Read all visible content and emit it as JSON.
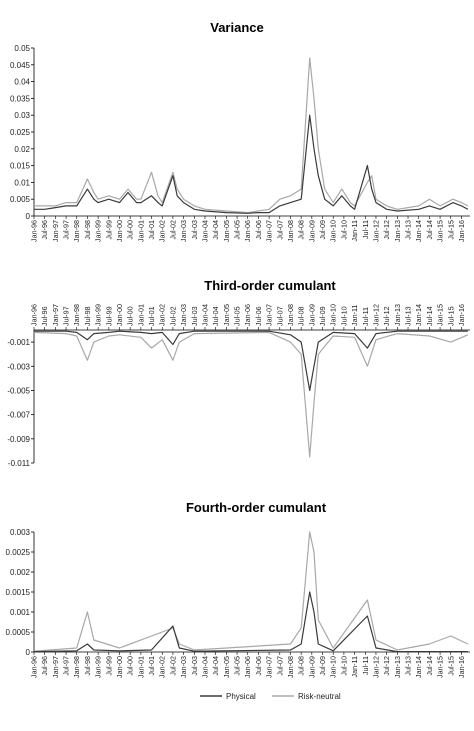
{
  "colors": {
    "physical": "#3a3a3a",
    "risk_neutral": "#a8a8a8",
    "axis": "#000000"
  },
  "x_tick_labels": [
    "Jan-96",
    "Jul-96",
    "Jan-97",
    "Jul-97",
    "Jan-98",
    "Jul-98",
    "Jan-99",
    "Jul-99",
    "Jan-00",
    "Jul-00",
    "Jan-01",
    "Jul-01",
    "Jan-02",
    "Jul-02",
    "Jan-03",
    "Jul-03",
    "Jan-04",
    "Jul-04",
    "Jan-05",
    "Jul-05",
    "Jan-06",
    "Jul-06",
    "Jan-07",
    "Jul-07",
    "Jan-08",
    "Jul-08",
    "Jan-09",
    "Jul-09",
    "Jan-10",
    "Jul-10",
    "Jan-11",
    "Jul-11",
    "Jan-12",
    "Jul-12",
    "Jan-13",
    "Jul-13",
    "Jan-14",
    "Jul-14",
    "Jan-15",
    "Jul-15",
    "Jan-16"
  ],
  "legend": {
    "physical": "Physical",
    "risk_neutral": "Risk-neutral"
  },
  "chart_data": [
    {
      "type": "line",
      "title": "Variance",
      "ylim": [
        0,
        0.05
      ],
      "y_ticks": [
        0,
        0.005,
        0.01,
        0.015,
        0.02,
        0.025,
        0.03,
        0.035,
        0.04,
        0.045,
        0.05
      ],
      "y_tick_labels": [
        "0",
        "0.005",
        "0.01",
        "0.015",
        "0.02",
        "0.025",
        "0.03",
        "0.035",
        "0.04",
        "0.045",
        "0.05"
      ],
      "x_axis_position": "bottom",
      "series": [
        {
          "name": "Physical",
          "points": [
            [
              1996.0,
              0.002
            ],
            [
              1996.5,
              0.002
            ],
            [
              1997.0,
              0.0025
            ],
            [
              1997.5,
              0.003
            ],
            [
              1998.0,
              0.003
            ],
            [
              1998.5,
              0.008
            ],
            [
              1998.8,
              0.005
            ],
            [
              1999.0,
              0.004
            ],
            [
              1999.5,
              0.005
            ],
            [
              2000.0,
              0.004
            ],
            [
              2000.4,
              0.007
            ],
            [
              2000.8,
              0.004
            ],
            [
              2001.0,
              0.004
            ],
            [
              2001.5,
              0.006
            ],
            [
              2001.8,
              0.004
            ],
            [
              2002.0,
              0.003
            ],
            [
              2002.5,
              0.012
            ],
            [
              2002.7,
              0.006
            ],
            [
              2003.0,
              0.004
            ],
            [
              2003.5,
              0.002
            ],
            [
              2004.0,
              0.0015
            ],
            [
              2005.0,
              0.001
            ],
            [
              2006.0,
              0.0008
            ],
            [
              2006.5,
              0.001
            ],
            [
              2007.0,
              0.001
            ],
            [
              2007.5,
              0.003
            ],
            [
              2008.0,
              0.004
            ],
            [
              2008.5,
              0.005
            ],
            [
              2008.9,
              0.03
            ],
            [
              2009.1,
              0.02
            ],
            [
              2009.3,
              0.012
            ],
            [
              2009.6,
              0.005
            ],
            [
              2010.0,
              0.003
            ],
            [
              2010.4,
              0.006
            ],
            [
              2010.8,
              0.003
            ],
            [
              2011.0,
              0.002
            ],
            [
              2011.6,
              0.015
            ],
            [
              2011.8,
              0.008
            ],
            [
              2012.0,
              0.004
            ],
            [
              2012.5,
              0.002
            ],
            [
              2013.0,
              0.0015
            ],
            [
              2014.0,
              0.002
            ],
            [
              2014.5,
              0.003
            ],
            [
              2015.0,
              0.002
            ],
            [
              2015.6,
              0.004
            ],
            [
              2016.0,
              0.003
            ],
            [
              2016.3,
              0.002
            ]
          ]
        },
        {
          "name": "Risk-neutral",
          "points": [
            [
              1996.0,
              0.003
            ],
            [
              1996.5,
              0.003
            ],
            [
              1997.0,
              0.003
            ],
            [
              1997.5,
              0.004
            ],
            [
              1998.0,
              0.004
            ],
            [
              1998.5,
              0.011
            ],
            [
              1998.8,
              0.007
            ],
            [
              1999.0,
              0.005
            ],
            [
              1999.5,
              0.006
            ],
            [
              2000.0,
              0.005
            ],
            [
              2000.4,
              0.008
            ],
            [
              2000.8,
              0.005
            ],
            [
              2001.0,
              0.005
            ],
            [
              2001.5,
              0.013
            ],
            [
              2001.8,
              0.006
            ],
            [
              2002.0,
              0.004
            ],
            [
              2002.5,
              0.013
            ],
            [
              2002.7,
              0.008
            ],
            [
              2003.0,
              0.005
            ],
            [
              2003.5,
              0.003
            ],
            [
              2004.0,
              0.002
            ],
            [
              2005.0,
              0.0015
            ],
            [
              2006.0,
              0.001
            ],
            [
              2006.5,
              0.0015
            ],
            [
              2007.0,
              0.002
            ],
            [
              2007.5,
              0.005
            ],
            [
              2008.0,
              0.006
            ],
            [
              2008.5,
              0.008
            ],
            [
              2008.9,
              0.047
            ],
            [
              2009.1,
              0.035
            ],
            [
              2009.3,
              0.02
            ],
            [
              2009.6,
              0.008
            ],
            [
              2010.0,
              0.004
            ],
            [
              2010.4,
              0.008
            ],
            [
              2010.8,
              0.004
            ],
            [
              2011.0,
              0.003
            ],
            [
              2011.6,
              0.01
            ],
            [
              2011.8,
              0.012
            ],
            [
              2012.0,
              0.005
            ],
            [
              2012.5,
              0.003
            ],
            [
              2013.0,
              0.002
            ],
            [
              2014.0,
              0.003
            ],
            [
              2014.5,
              0.005
            ],
            [
              2015.0,
              0.003
            ],
            [
              2015.6,
              0.005
            ],
            [
              2016.0,
              0.004
            ],
            [
              2016.3,
              0.003
            ]
          ]
        }
      ]
    },
    {
      "type": "line",
      "title": "Third-order cumulant",
      "ylim": [
        -0.011,
        0
      ],
      "y_ticks": [
        -0.001,
        -0.003,
        -0.005,
        -0.007,
        -0.009,
        -0.011
      ],
      "y_tick_labels": [
        "-0.001",
        "-0.003",
        "-0.005",
        "-0.007",
        "-0.009",
        "-0.011"
      ],
      "x_axis_position": "top",
      "series": [
        {
          "name": "Physical",
          "points": [
            [
              1996.0,
              -0.0001
            ],
            [
              1997.5,
              -0.0001
            ],
            [
              1998.0,
              -0.0002
            ],
            [
              1998.5,
              -0.0008
            ],
            [
              1998.8,
              -0.0003
            ],
            [
              1999.5,
              -0.0002
            ],
            [
              2000.0,
              -0.0001
            ],
            [
              2001.0,
              -0.0002
            ],
            [
              2001.5,
              -0.0003
            ],
            [
              2002.0,
              -0.0002
            ],
            [
              2002.5,
              -0.0012
            ],
            [
              2002.8,
              -0.0003
            ],
            [
              2003.5,
              -0.0001
            ],
            [
              2007.0,
              -0.0001
            ],
            [
              2008.0,
              -0.0004
            ],
            [
              2008.5,
              -0.001
            ],
            [
              2008.9,
              -0.005
            ],
            [
              2009.1,
              -0.003
            ],
            [
              2009.3,
              -0.001
            ],
            [
              2010.0,
              -0.0002
            ],
            [
              2011.0,
              -0.0003
            ],
            [
              2011.6,
              -0.0015
            ],
            [
              2012.0,
              -0.0003
            ],
            [
              2013.0,
              -0.0001
            ],
            [
              2016.3,
              -0.0001
            ]
          ]
        },
        {
          "name": "Risk-neutral",
          "points": [
            [
              1996.0,
              -0.0002
            ],
            [
              1997.5,
              -0.0003
            ],
            [
              1998.0,
              -0.0005
            ],
            [
              1998.5,
              -0.0025
            ],
            [
              1998.8,
              -0.001
            ],
            [
              1999.5,
              -0.0005
            ],
            [
              2000.0,
              -0.0004
            ],
            [
              2001.0,
              -0.0006
            ],
            [
              2001.5,
              -0.0015
            ],
            [
              2002.0,
              -0.0008
            ],
            [
              2002.5,
              -0.0025
            ],
            [
              2002.8,
              -0.001
            ],
            [
              2003.5,
              -0.0003
            ],
            [
              2007.0,
              -0.0002
            ],
            [
              2008.0,
              -0.001
            ],
            [
              2008.5,
              -0.002
            ],
            [
              2008.9,
              -0.0105
            ],
            [
              2009.1,
              -0.006
            ],
            [
              2009.3,
              -0.002
            ],
            [
              2010.0,
              -0.0005
            ],
            [
              2011.0,
              -0.0006
            ],
            [
              2011.6,
              -0.003
            ],
            [
              2012.0,
              -0.0008
            ],
            [
              2013.0,
              -0.0003
            ],
            [
              2014.5,
              -0.0005
            ],
            [
              2015.5,
              -0.001
            ],
            [
              2016.3,
              -0.0004
            ]
          ]
        }
      ]
    },
    {
      "type": "line",
      "title": "Fourth-order cumulant",
      "ylim": [
        0,
        0.003
      ],
      "y_ticks": [
        0,
        0.0005,
        0.001,
        0.0015,
        0.002,
        0.0025,
        0.003
      ],
      "y_tick_labels": [
        "0",
        "0.0005",
        "0.001",
        "0.0015",
        "0.002",
        "0.0025",
        "0.003"
      ],
      "x_axis_position": "bottom",
      "series": [
        {
          "name": "Physical",
          "points": [
            [
              1996.0,
              1e-05
            ],
            [
              1998.0,
              3e-05
            ],
            [
              1998.5,
              0.0002
            ],
            [
              1998.8,
              5e-05
            ],
            [
              2000.0,
              3e-05
            ],
            [
              2001.5,
              5e-05
            ],
            [
              2002.5,
              0.00065
            ],
            [
              2002.8,
              0.0001
            ],
            [
              2003.5,
              2e-05
            ],
            [
              2008.0,
              5e-05
            ],
            [
              2008.5,
              0.0002
            ],
            [
              2008.9,
              0.0015
            ],
            [
              2009.1,
              0.001
            ],
            [
              2009.3,
              0.0002
            ],
            [
              2010.0,
              3e-05
            ],
            [
              2011.6,
              0.0009
            ],
            [
              2012.0,
              0.0001
            ],
            [
              2013.0,
              1e-05
            ],
            [
              2016.3,
              1e-05
            ]
          ]
        },
        {
          "name": "Risk-neutral",
          "points": [
            [
              1996.0,
              2e-05
            ],
            [
              1998.0,
              0.0001
            ],
            [
              1998.5,
              0.001
            ],
            [
              1998.8,
              0.0003
            ],
            [
              2000.0,
              0.0001
            ],
            [
              2001.5,
              0.0004
            ],
            [
              2002.5,
              0.0006
            ],
            [
              2002.8,
              0.0002
            ],
            [
              2003.5,
              5e-05
            ],
            [
              2008.0,
              0.0002
            ],
            [
              2008.5,
              0.0006
            ],
            [
              2008.9,
              0.003
            ],
            [
              2009.1,
              0.0025
            ],
            [
              2009.3,
              0.0008
            ],
            [
              2010.0,
              0.0001
            ],
            [
              2011.6,
              0.0013
            ],
            [
              2012.0,
              0.0003
            ],
            [
              2013.0,
              5e-05
            ],
            [
              2014.5,
              0.0002
            ],
            [
              2015.5,
              0.0004
            ],
            [
              2016.3,
              0.0002
            ]
          ]
        }
      ]
    }
  ]
}
